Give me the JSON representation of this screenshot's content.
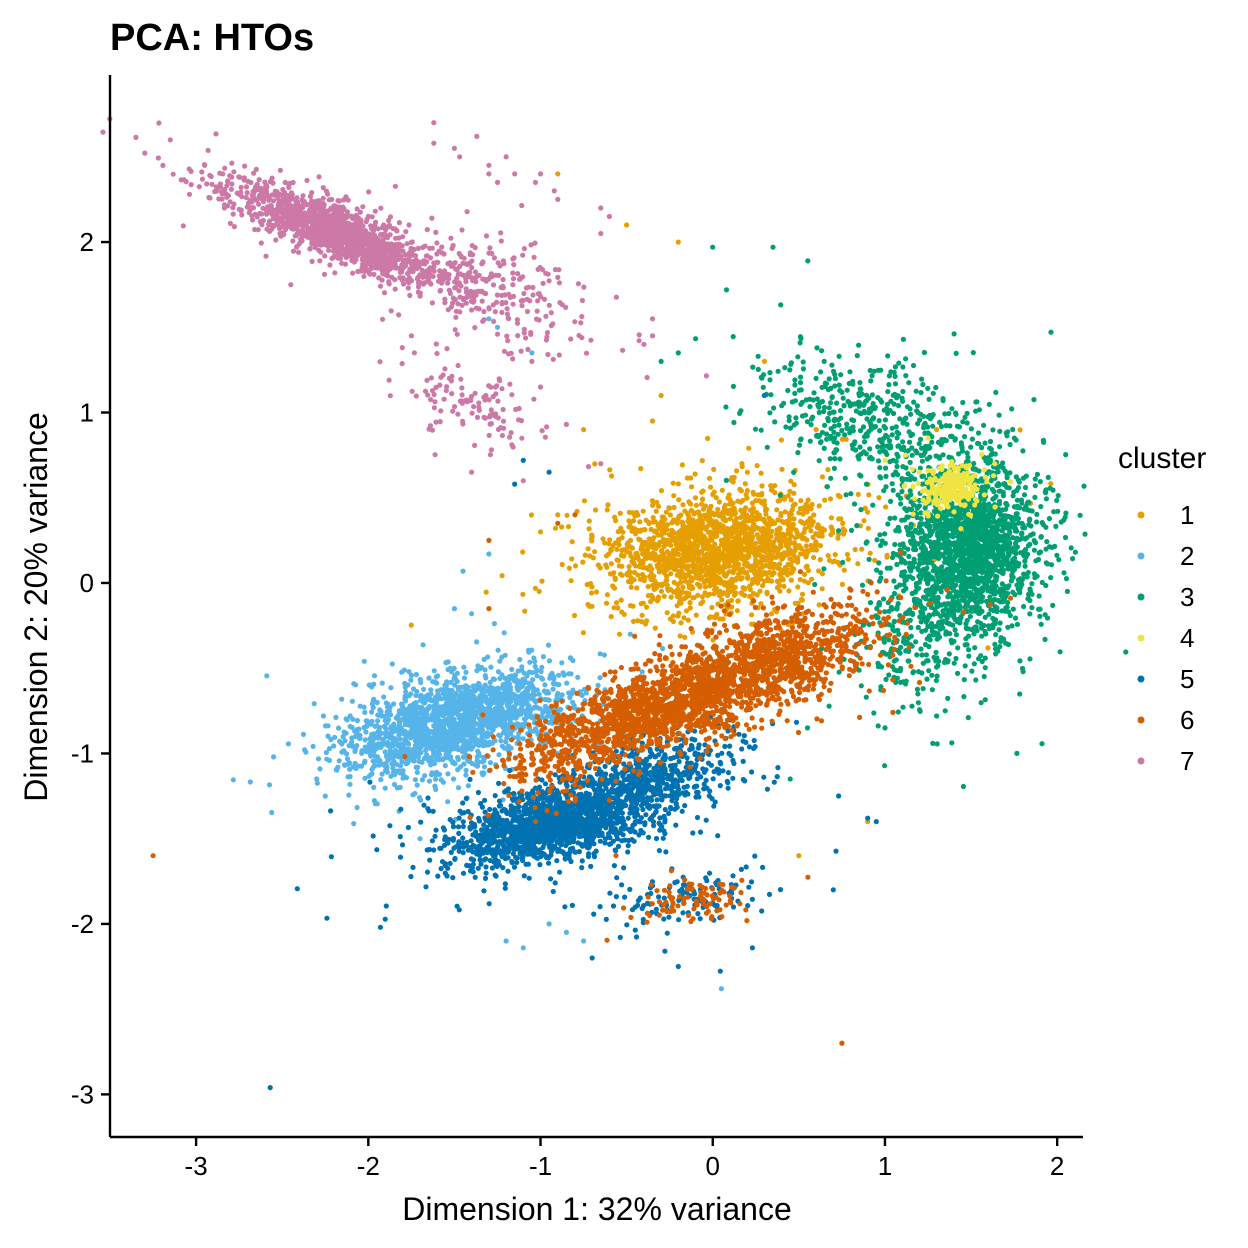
{
  "chart_data": {
    "type": "scatter",
    "title": "PCA: HTOs",
    "xlabel": "Dimension 1: 32% variance",
    "ylabel": "Dimension 2: 20% variance",
    "xlim": [
      -3.5,
      2.15
    ],
    "ylim": [
      -3.25,
      2.98
    ],
    "xticks": [
      -3,
      -2,
      -1,
      0,
      1,
      2
    ],
    "yticks": [
      -3,
      -2,
      -1,
      0,
      1,
      2
    ],
    "grid": false,
    "legend": {
      "title": "cluster",
      "position": "right"
    },
    "colors": {
      "1": "#E69F00",
      "2": "#56B4E9",
      "3": "#009E73",
      "4": "#F0E442",
      "5": "#0072B2",
      "6": "#D55E00",
      "7": "#CC79A7"
    },
    "series": [
      {
        "name": "1",
        "clusters": [
          {
            "cx": 0.05,
            "cy": 0.2,
            "sx": 0.33,
            "sy": 0.17,
            "rho": 0.15,
            "n": 1700
          }
        ],
        "points": [
          [
            -0.9,
            0.4
          ],
          [
            -1.0,
            0.3
          ],
          [
            0.5,
            -1.6
          ],
          [
            0.9,
            -1.4
          ],
          [
            0.85,
            0.75
          ],
          [
            0.75,
            -2.7
          ],
          [
            -0.3,
            1.1
          ],
          [
            -0.5,
            2.1
          ],
          [
            -0.2,
            2.0
          ],
          [
            0.3,
            1.3
          ],
          [
            -0.9,
            2.4
          ],
          [
            -0.1,
            0.5
          ],
          [
            0.6,
            0.9
          ],
          [
            1.3,
            0.9
          ],
          [
            -0.35,
            0.95
          ],
          [
            -0.75,
            0.9
          ]
        ]
      },
      {
        "name": "2",
        "clusters": [
          {
            "cx": -1.6,
            "cy": -0.85,
            "sx": 0.28,
            "sy": 0.14,
            "rho": 0.35,
            "n": 1300
          },
          {
            "cx": -1.2,
            "cy": -0.72,
            "sx": 0.22,
            "sy": 0.12,
            "rho": 0.3,
            "n": 500
          }
        ],
        "points": [
          [
            -2.55,
            -1.02
          ],
          [
            -1.45,
            0.07
          ],
          [
            -1.3,
            0.17
          ],
          [
            0.05,
            -2.38
          ],
          [
            -1.3,
            1.55
          ],
          [
            -1.25,
            1.5
          ],
          [
            -1.05,
            1.35
          ],
          [
            -1.2,
            -2.1
          ],
          [
            -1.1,
            -2.14
          ],
          [
            -0.95,
            -2.0
          ],
          [
            -0.85,
            -2.05
          ],
          [
            -1.5,
            -0.15
          ],
          [
            -1.4,
            -0.18
          ],
          [
            -2.3,
            -1.15
          ],
          [
            -2.25,
            -1.25
          ],
          [
            -1.7,
            -1.5
          ],
          [
            -0.75,
            -2.1
          ]
        ]
      },
      {
        "name": "3",
        "clusters": [
          {
            "cx": 1.48,
            "cy": 0.2,
            "sx": 0.2,
            "sy": 0.26,
            "rho": 0.05,
            "n": 2000
          },
          {
            "cx": 0.9,
            "cy": 0.95,
            "sx": 0.3,
            "sy": 0.18,
            "rho": -0.4,
            "n": 450
          },
          {
            "cx": 1.1,
            "cy": -0.4,
            "sx": 0.15,
            "sy": 0.18,
            "rho": 0.0,
            "n": 150
          }
        ],
        "points": [
          [
            0.0,
            1.97
          ],
          [
            0.35,
            1.97
          ],
          [
            0.08,
            1.72
          ],
          [
            1.3,
            -0.78
          ],
          [
            1.35,
            -0.75
          ],
          [
            1.0,
            -0.85
          ],
          [
            1.28,
            0.6
          ],
          [
            0.55,
            -0.85
          ],
          [
            0.45,
            -1.15
          ],
          [
            0.6,
            1.2
          ],
          [
            -0.3,
            1.3
          ],
          [
            -0.2,
            1.35
          ]
        ]
      },
      {
        "name": "4",
        "clusters": [
          {
            "cx": 1.38,
            "cy": 0.55,
            "sx": 0.09,
            "sy": 0.07,
            "rho": 0.2,
            "n": 220
          }
        ],
        "points": [
          [
            1.0,
            0.72
          ],
          [
            1.12,
            0.75
          ],
          [
            1.2,
            0.65
          ],
          [
            1.25,
            0.85
          ]
        ]
      },
      {
        "name": "5",
        "clusters": [
          {
            "cx": -0.9,
            "cy": -1.4,
            "sx": 0.3,
            "sy": 0.13,
            "rho": 0.55,
            "n": 1700
          },
          {
            "cx": -0.3,
            "cy": -1.1,
            "sx": 0.25,
            "sy": 0.12,
            "rho": 0.5,
            "n": 400
          },
          {
            "cx": -0.2,
            "cy": -1.85,
            "sx": 0.22,
            "sy": 0.09,
            "rho": 0.4,
            "n": 120
          }
        ],
        "points": [
          [
            -2.57,
            -2.96
          ],
          [
            -1.93,
            -2.02
          ],
          [
            -0.95,
            0.65
          ],
          [
            -1.1,
            0.72
          ],
          [
            -1.15,
            0.58
          ],
          [
            -0.2,
            -2.25
          ],
          [
            0.23,
            -2.14
          ],
          [
            0.95,
            -1.4
          ],
          [
            0.9,
            -1.38
          ],
          [
            -0.7,
            -2.2
          ],
          [
            0.7,
            -1.8
          ],
          [
            0.3,
            1.1
          ]
        ]
      },
      {
        "name": "6",
        "clusters": [
          {
            "cx": -0.25,
            "cy": -0.72,
            "sx": 0.3,
            "sy": 0.15,
            "rho": 0.6,
            "n": 1200
          },
          {
            "cx": 0.35,
            "cy": -0.45,
            "sx": 0.3,
            "sy": 0.15,
            "rho": 0.55,
            "n": 900
          },
          {
            "cx": -0.85,
            "cy": -0.95,
            "sx": 0.2,
            "sy": 0.14,
            "rho": 0.5,
            "n": 300
          },
          {
            "cx": -0.15,
            "cy": -1.85,
            "sx": 0.2,
            "sy": 0.08,
            "rho": 0.3,
            "n": 90
          }
        ],
        "points": [
          [
            -3.25,
            -1.6
          ],
          [
            0.75,
            -2.7
          ],
          [
            -1.3,
            -0.15
          ],
          [
            -1.3,
            0.25
          ],
          [
            -0.8,
            0.4
          ],
          [
            -0.9,
            0.35
          ]
        ]
      },
      {
        "name": "7",
        "clusters": [
          {
            "cx": -2.2,
            "cy": 2.06,
            "sx": 0.3,
            "sy": 0.15,
            "rho": -0.85,
            "n": 1400
          },
          {
            "cx": -1.3,
            "cy": 1.75,
            "sx": 0.3,
            "sy": 0.18,
            "rho": -0.6,
            "n": 250
          },
          {
            "cx": -1.35,
            "cy": 1.05,
            "sx": 0.2,
            "sy": 0.14,
            "rho": -0.4,
            "n": 120
          }
        ],
        "points": [
          [
            -3.15,
            2.6
          ],
          [
            -2.95,
            2.45
          ],
          [
            -1.62,
            2.58
          ],
          [
            -1.62,
            2.7
          ],
          [
            -1.5,
            2.55
          ],
          [
            -1.37,
            2.62
          ],
          [
            -1.47,
            2.5
          ],
          [
            -1.3,
            2.45
          ],
          [
            -1.2,
            2.5
          ],
          [
            -1.15,
            2.4
          ],
          [
            -1.25,
            2.35
          ],
          [
            -1.3,
            2.4
          ],
          [
            -1.0,
            2.4
          ],
          [
            -1.03,
            2.35
          ],
          [
            -0.92,
            2.3
          ],
          [
            -0.9,
            2.25
          ],
          [
            -0.65,
            2.2
          ],
          [
            -0.6,
            2.15
          ],
          [
            -0.65,
            2.05
          ],
          [
            -0.35,
            1.55
          ],
          [
            -0.35,
            1.45
          ],
          [
            -0.4,
            1.4
          ],
          [
            -1.0,
            1.15
          ],
          [
            -0.65,
            0.7
          ],
          [
            -1.1,
            0.6
          ],
          [
            -1.4,
            0.65
          ],
          [
            -1.75,
            1.45
          ],
          [
            -2.45,
            1.75
          ],
          [
            -1.05,
            1.3
          ]
        ]
      }
    ]
  }
}
